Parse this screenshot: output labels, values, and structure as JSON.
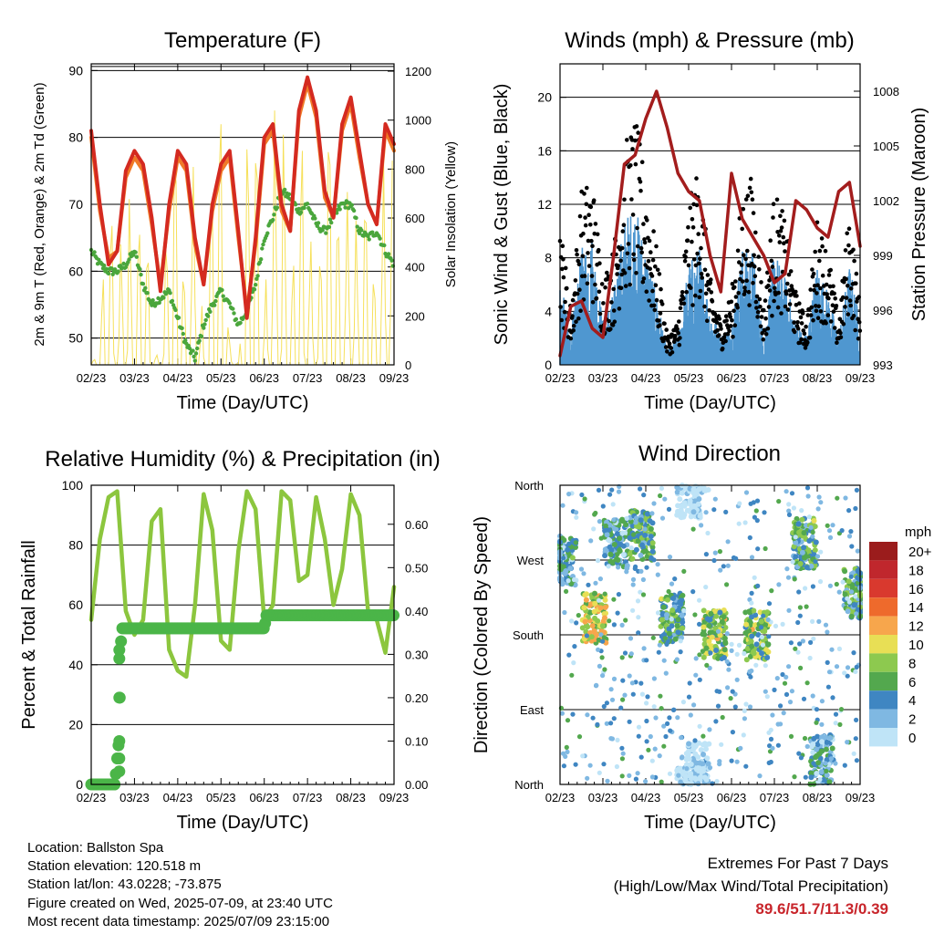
{
  "footer": {
    "location": "Location: Ballston Spa",
    "elevation": "Station elevation: 120.518 m",
    "latlon": "Station lat/lon: 43.0228; -73.875",
    "created": "Figure created on Wed, 2025-07-09, at 23:40 UTC",
    "recent": "Most recent data timestamp: 2025/07/09 23:15:00",
    "extremes_title": "Extremes For Past 7 Days",
    "extremes_sub": "(High/Low/Max Wind/Total Precipitation)",
    "extremes_values": "89.6/51.7/11.3/0.39"
  },
  "colors": {
    "temp2m": "#d42a20",
    "temp9m": "#f07a28",
    "dewpoint": "#4aa63c",
    "solar": "#f6e05a",
    "gust": "#000000",
    "wind": "#4f97d0",
    "pressure": "#a31d1d",
    "rh": "#8cc63e",
    "precip": "#4bb548"
  },
  "chart_data": [
    {
      "type": "line",
      "title": "Temperature (F)",
      "xlabel": "Time (Day/UTC)",
      "ylabel": "2m & 9m T (Red, Orange) & 2m Td (Green)",
      "y2label": "Solar Insolation (Yellow)",
      "x_ticks": [
        "02/23",
        "03/23",
        "04/23",
        "05/23",
        "06/23",
        "07/23",
        "08/23",
        "09/23"
      ],
      "ylim": [
        46,
        91
      ],
      "y_ticks": [
        50,
        60,
        70,
        80,
        90
      ],
      "y2lim": [
        0,
        1230
      ],
      "y2_ticks": [
        0,
        200,
        400,
        600,
        800,
        1000,
        1200
      ],
      "grid": true,
      "x": [
        0,
        0.2,
        0.4,
        0.6,
        0.8,
        1.0,
        1.2,
        1.4,
        1.6,
        1.8,
        2.0,
        2.2,
        2.4,
        2.6,
        2.8,
        3.0,
        3.2,
        3.4,
        3.6,
        3.8,
        4.0,
        4.2,
        4.4,
        4.6,
        4.8,
        5.0,
        5.2,
        5.4,
        5.6,
        5.8,
        6.0,
        6.2,
        6.4,
        6.6,
        6.8,
        7.0
      ],
      "series": [
        {
          "name": "2m T",
          "values": [
            81,
            70,
            61,
            63,
            75,
            78,
            76,
            68,
            57,
            70,
            78,
            76,
            65,
            58,
            70,
            76,
            78,
            66,
            53,
            65,
            80,
            82,
            70,
            66,
            84,
            89,
            84,
            72,
            68,
            82,
            86,
            78,
            70,
            67,
            82,
            79
          ]
        },
        {
          "name": "9m T",
          "values": [
            80,
            69,
            62,
            63,
            74,
            77,
            75,
            67,
            58,
            69,
            77,
            75,
            64,
            58,
            69,
            75,
            77,
            65,
            54,
            64,
            79,
            81,
            69,
            66,
            83,
            88,
            83,
            71,
            68,
            81,
            85,
            77,
            70,
            67,
            81,
            78
          ]
        },
        {
          "name": "2m Td",
          "values": [
            63,
            61,
            60,
            60,
            61,
            63,
            58,
            55,
            56,
            57,
            53,
            49,
            47,
            52,
            55,
            57,
            55,
            52,
            54,
            58,
            65,
            68,
            72,
            71,
            69,
            70,
            67,
            66,
            68,
            70,
            70,
            66,
            65,
            66,
            63,
            61
          ]
        },
        {
          "name": "Solar",
          "axis": "y2",
          "values": [
            0,
            80,
            900,
            120,
            1050,
            200,
            950,
            100,
            0,
            820,
            1000,
            150,
            980,
            60,
            900,
            1100,
            90,
            0,
            950,
            1050,
            200,
            1000,
            1200,
            150,
            1000,
            800,
            60,
            950,
            1100,
            200,
            1050,
            300,
            900,
            150,
            1000,
            800
          ]
        }
      ]
    },
    {
      "type": "scatter",
      "title": "Winds (mph) & Pressure (mb)",
      "xlabel": "Time (Day/UTC)",
      "ylabel": "Sonic Wind & Gust (Blue, Black)",
      "y2label": "Station Pressure (Maroon)",
      "x_ticks": [
        "02/23",
        "03/23",
        "04/23",
        "05/23",
        "06/23",
        "07/23",
        "08/23",
        "09/23"
      ],
      "ylim": [
        0,
        22.5
      ],
      "y_ticks": [
        0,
        4,
        8,
        12,
        16,
        20
      ],
      "y2lim": [
        993,
        1009.5
      ],
      "y2_ticks": [
        993,
        996,
        999,
        1002,
        1005,
        1008
      ],
      "grid": true,
      "x": [
        0,
        0.25,
        0.5,
        0.75,
        1.0,
        1.25,
        1.5,
        1.75,
        2.0,
        2.25,
        2.5,
        2.75,
        3.0,
        3.25,
        3.5,
        3.75,
        4.0,
        4.25,
        4.5,
        4.75,
        5.0,
        5.25,
        5.5,
        5.75,
        6.0,
        6.25,
        6.5,
        6.75,
        7.0
      ],
      "series": [
        {
          "name": "Gust",
          "values": [
            10,
            4,
            12,
            13,
            6,
            8,
            15,
            17,
            13,
            8,
            2,
            3,
            11,
            14,
            6,
            3,
            5,
            12,
            13,
            4,
            12,
            10,
            5,
            3,
            10,
            8,
            3,
            11,
            4
          ]
        },
        {
          "name": "Wind",
          "values": [
            6,
            2,
            8,
            9,
            3,
            5,
            10,
            11,
            8,
            5,
            1,
            2,
            7,
            8,
            4,
            2,
            3,
            8,
            8,
            2,
            8,
            6,
            3,
            2,
            7,
            5,
            2,
            7,
            3
          ]
        },
        {
          "name": "Pressure",
          "axis": "y2",
          "values": [
            993.5,
            996.2,
            996.5,
            995,
            994.5,
            999,
            1004,
            1004.5,
            1006.5,
            1008,
            1006,
            1003.5,
            1002.5,
            1002,
            999,
            997,
            1003.5,
            1001,
            1000,
            999,
            997.5,
            998,
            1002,
            1001.5,
            1000.5,
            1000,
            1002.5,
            1003,
            999.5
          ]
        }
      ]
    },
    {
      "type": "line",
      "title": "Relative Humidity (%) & Precipitation (in)",
      "xlabel": "Time (Day/UTC)",
      "ylabel": "Percent & Total Rainfall",
      "x_ticks": [
        "02/23",
        "03/23",
        "04/23",
        "05/23",
        "06/23",
        "07/23",
        "08/23",
        "09/23"
      ],
      "ylim": [
        0,
        100
      ],
      "y_ticks": [
        0,
        20,
        40,
        60,
        80,
        100
      ],
      "y2lim": [
        0,
        0.69
      ],
      "y2_ticks": [
        "0.00",
        "0.10",
        "0.20",
        "0.30",
        "0.40",
        "0.50",
        "0.60"
      ],
      "grid": true,
      "x": [
        0,
        0.2,
        0.4,
        0.6,
        0.8,
        1.0,
        1.2,
        1.4,
        1.6,
        1.8,
        2.0,
        2.2,
        2.4,
        2.6,
        2.8,
        3.0,
        3.2,
        3.4,
        3.6,
        3.8,
        4.0,
        4.2,
        4.4,
        4.6,
        4.8,
        5.0,
        5.2,
        5.4,
        5.6,
        5.8,
        6.0,
        6.2,
        6.4,
        6.6,
        6.8,
        7.0
      ],
      "series": [
        {
          "name": "RH",
          "values": [
            55,
            82,
            96,
            98,
            58,
            50,
            55,
            88,
            92,
            45,
            38,
            36,
            60,
            97,
            85,
            48,
            45,
            78,
            98,
            92,
            55,
            60,
            98,
            95,
            68,
            70,
            96,
            82,
            60,
            72,
            97,
            90,
            58,
            55,
            44,
            66
          ]
        },
        {
          "name": "Precip",
          "axis": "y2",
          "x": [
            0,
            0.55,
            0.6,
            0.64,
            0.66,
            0.68,
            0.7,
            4.0,
            4.05,
            7.0
          ],
          "values": [
            0,
            0,
            0.06,
            0.1,
            0.2,
            0.3,
            0.36,
            0.36,
            0.39,
            0.39
          ]
        }
      ]
    },
    {
      "type": "scatter",
      "title": "Wind Direction",
      "xlabel": "Time (Day/UTC)",
      "ylabel": "Direction (Colored By Speed)",
      "x_ticks": [
        "02/23",
        "03/23",
        "04/23",
        "05/23",
        "06/23",
        "07/23",
        "08/23",
        "09/23"
      ],
      "y_ticks": [
        "North",
        "East",
        "South",
        "West",
        "North"
      ],
      "ylim": [
        0,
        360
      ],
      "grid": true,
      "legend": {
        "title": "mph",
        "labels": [
          "20+",
          "18",
          "16",
          "14",
          "12",
          "10",
          "8",
          "6",
          "4",
          "2",
          "0"
        ],
        "colors": [
          "#9b1c1c",
          "#c0272d",
          "#d9392e",
          "#ee6a2c",
          "#f7a64c",
          "#e8df55",
          "#8dc94f",
          "#53a84e",
          "#3f86c2",
          "#7fb8e2",
          "#bfe4f7"
        ]
      },
      "clusters": [
        {
          "x": 0.1,
          "dir": 270,
          "speed": 4
        },
        {
          "x": 0.8,
          "dir": 200,
          "speed": 10
        },
        {
          "x": 1.3,
          "dir": 290,
          "speed": 4
        },
        {
          "x": 1.9,
          "dir": 300,
          "speed": 6
        },
        {
          "x": 2.6,
          "dir": 200,
          "speed": 6
        },
        {
          "x": 3.6,
          "dir": 180,
          "speed": 8
        },
        {
          "x": 4.6,
          "dir": 180,
          "speed": 8
        },
        {
          "x": 5.7,
          "dir": 290,
          "speed": 6
        },
        {
          "x": 6.1,
          "dir": 30,
          "speed": 4
        },
        {
          "x": 6.9,
          "dir": 230,
          "speed": 6
        },
        {
          "x": 3.0,
          "dir": 350,
          "speed": 0
        },
        {
          "x": 3.2,
          "dir": 20,
          "speed": 0
        }
      ]
    }
  ],
  "footer_extremes_color": "#c8252b"
}
